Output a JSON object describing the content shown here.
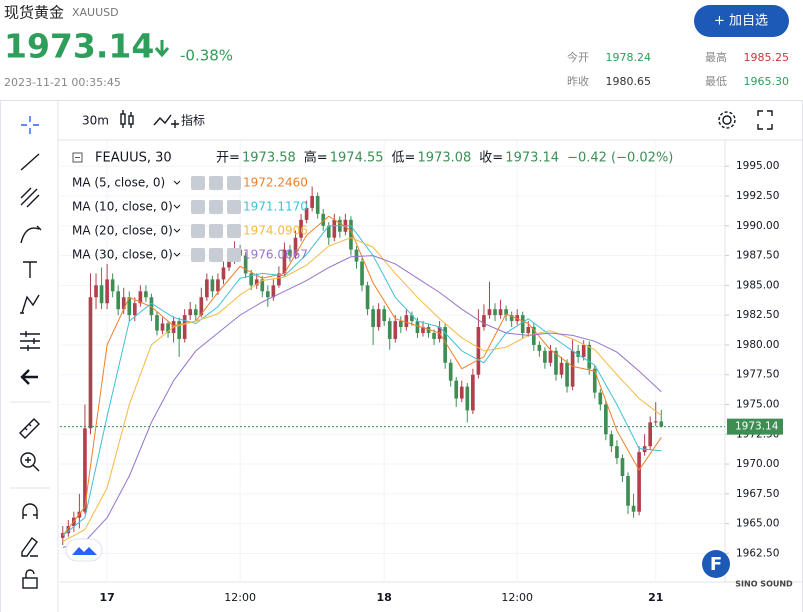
{
  "header": {
    "title": "现货黄金",
    "ticker": "XAUUSD",
    "price": "1973.14",
    "change": "-0.38%",
    "time": "2023-11-21 00:35:45",
    "button": "+ 加自选",
    "stats": [
      {
        "label": "今开",
        "value": "1978.24",
        "color": "#2e9e5b"
      },
      {
        "label": "最高",
        "value": "1985.25",
        "color": "#d0343a"
      },
      {
        "label": "昨收",
        "value": "1980.65",
        "color": "#333333"
      },
      {
        "label": "最低",
        "value": "1965.30",
        "color": "#2e9e5b"
      }
    ]
  },
  "toolbar": {
    "interval": "30m",
    "indicators": "指标"
  },
  "watermark": "SINO SOUND",
  "logo": "F",
  "chart_data": {
    "type": "candlestick",
    "symbol": "FEAUUS, 30",
    "ohlc_labels": [
      "开=",
      "高=",
      "低=",
      "收="
    ],
    "change_text": "−0.42 (−0.02%)",
    "up_color": "#b0404c",
    "down_color": "#3e8e54",
    "grid": true,
    "xlim": [
      -0.5,
      119.5
    ],
    "ylim": [
      1960.1,
      1997.2
    ],
    "xticks": [
      {
        "value": 8,
        "label": "17"
      },
      {
        "value": 32,
        "label": "12:00"
      },
      {
        "value": 58,
        "label": "18"
      },
      {
        "value": 82,
        "label": "12:00"
      },
      {
        "value": 107,
        "label": "21"
      }
    ],
    "yticks": [
      {
        "value": 1962.5,
        "label": "1962.50"
      },
      {
        "value": 1965,
        "label": "1965.00"
      },
      {
        "value": 1967.5,
        "label": "1967.50"
      },
      {
        "value": 1970,
        "label": "1970.00"
      },
      {
        "value": 1972.5,
        "label": "1972.50"
      },
      {
        "value": 1975,
        "label": "1975.00"
      },
      {
        "value": 1977.5,
        "label": "1977.50"
      },
      {
        "value": 1980,
        "label": "1980.00"
      },
      {
        "value": 1982.5,
        "label": "1982.50"
      },
      {
        "value": 1985,
        "label": "1985.00"
      },
      {
        "value": 1987.5,
        "label": "1987.50"
      },
      {
        "value": 1990,
        "label": "1990.00"
      },
      {
        "value": 1992.5,
        "label": "1992.50"
      },
      {
        "value": 1995,
        "label": "1995.00"
      }
    ],
    "candles": [
      [
        1963.8,
        1964.8,
        1963.2,
        1964.2
      ],
      [
        1964.2,
        1965.3,
        1963.9,
        1964.8
      ],
      [
        1964.8,
        1966,
        1964.3,
        1965.5
      ],
      [
        1965.5,
        1967.5,
        1964.6,
        1966
      ],
      [
        1966,
        1975,
        1965.8,
        1973
      ],
      [
        1973,
        1986,
        1972.5,
        1984
      ],
      [
        1984,
        1986,
        1983,
        1985
      ],
      [
        1985,
        1986.5,
        1983,
        1983.5
      ],
      [
        1983.5,
        1986.8,
        1983,
        1985.5
      ],
      [
        1985.5,
        1986,
        1984,
        1984.5
      ],
      [
        1984.5,
        1985,
        1982.5,
        1983
      ],
      [
        1983,
        1984.8,
        1982.6,
        1984
      ],
      [
        1984,
        1984.5,
        1982,
        1982.5
      ],
      [
        1982.5,
        1984,
        1982,
        1983.5
      ],
      [
        1983.5,
        1985,
        1983.2,
        1984.5
      ],
      [
        1984.5,
        1985,
        1983.6,
        1984
      ],
      [
        1984,
        1984.3,
        1982,
        1982.5
      ],
      [
        1982.5,
        1982.8,
        1980.8,
        1981.2
      ],
      [
        1981.2,
        1982.3,
        1980.9,
        1981.8
      ],
      [
        1981.8,
        1982,
        1980.6,
        1981
      ],
      [
        1981,
        1982.4,
        1980.2,
        1982
      ],
      [
        1982,
        1982.3,
        1979,
        1980.5
      ],
      [
        1980.5,
        1983,
        1980.2,
        1982.5
      ],
      [
        1982.5,
        1983.6,
        1982.1,
        1983
      ],
      [
        1983,
        1983.4,
        1982,
        1982.5
      ],
      [
        1982.5,
        1984.8,
        1982.3,
        1984
      ],
      [
        1984,
        1986,
        1983.7,
        1985.5
      ],
      [
        1985.5,
        1985.8,
        1984,
        1984.5
      ],
      [
        1984.5,
        1986,
        1984.2,
        1985.5
      ],
      [
        1985.5,
        1987,
        1985.1,
        1986.5
      ],
      [
        1986.5,
        1987.6,
        1986.2,
        1987
      ],
      [
        1987,
        1988.7,
        1986.8,
        1988
      ],
      [
        1988,
        1988.4,
        1987,
        1987.5
      ],
      [
        1987.5,
        1987.8,
        1985.6,
        1986
      ],
      [
        1986,
        1986.3,
        1984.6,
        1985
      ],
      [
        1985,
        1986,
        1984.7,
        1985.5
      ],
      [
        1985.5,
        1985.8,
        1984,
        1984.5
      ],
      [
        1984.5,
        1985,
        1983.2,
        1984
      ],
      [
        1984,
        1985.5,
        1983.7,
        1985
      ],
      [
        1985,
        1986.6,
        1984.8,
        1986
      ],
      [
        1986,
        1988.6,
        1985.8,
        1988
      ],
      [
        1988,
        1988.4,
        1987,
        1987.5
      ],
      [
        1987.5,
        1989.6,
        1987.2,
        1989
      ],
      [
        1989,
        1991,
        1988.7,
        1990.5
      ],
      [
        1990.5,
        1992.1,
        1990.2,
        1991.5
      ],
      [
        1991.5,
        1993.3,
        1991.2,
        1992.5
      ],
      [
        1992.5,
        1992.8,
        1990.6,
        1991
      ],
      [
        1991,
        1991.4,
        1989.6,
        1990
      ],
      [
        1990,
        1990.3,
        1988.4,
        1989
      ],
      [
        1989,
        1991,
        1988.7,
        1990.5
      ],
      [
        1990.5,
        1990.8,
        1989,
        1989.5
      ],
      [
        1989.5,
        1991,
        1989.2,
        1990.5
      ],
      [
        1990.5,
        1990.8,
        1987.5,
        1988
      ],
      [
        1988,
        1988.3,
        1986.4,
        1987
      ],
      [
        1987,
        1987.3,
        1984.5,
        1985
      ],
      [
        1985,
        1985.3,
        1982.5,
        1983
      ],
      [
        1983,
        1983.3,
        1980,
        1981.5
      ],
      [
        1981.5,
        1983.5,
        1981.2,
        1983
      ],
      [
        1983,
        1983.3,
        1981.6,
        1982
      ],
      [
        1982,
        1982.3,
        1979.6,
        1980.5
      ],
      [
        1980.5,
        1982.5,
        1980.2,
        1982
      ],
      [
        1982,
        1982.4,
        1981,
        1981.5
      ],
      [
        1981.5,
        1983,
        1981.2,
        1982.5
      ],
      [
        1982.5,
        1982.8,
        1981.6,
        1982
      ],
      [
        1982,
        1982.3,
        1980.6,
        1981
      ],
      [
        1981,
        1982,
        1980.7,
        1981.5
      ],
      [
        1981.5,
        1981.8,
        1980.6,
        1981
      ],
      [
        1981,
        1981.3,
        1980,
        1980.5
      ],
      [
        1980.5,
        1982,
        1980.2,
        1981.5
      ],
      [
        1981.5,
        1981.8,
        1978,
        1978.5
      ],
      [
        1978.5,
        1978.8,
        1976.5,
        1977
      ],
      [
        1977,
        1977.3,
        1974.8,
        1975.5
      ],
      [
        1975.5,
        1977,
        1975.2,
        1976.5
      ],
      [
        1976.5,
        1976.8,
        1973.5,
        1974.5
      ],
      [
        1974.5,
        1978,
        1974.2,
        1977.5
      ],
      [
        1977.5,
        1983,
        1977.2,
        1981.5
      ],
      [
        1981.5,
        1983.4,
        1981.2,
        1982.5
      ],
      [
        1982.5,
        1985.3,
        1982.2,
        1983
      ],
      [
        1983,
        1983.5,
        1982,
        1982.5
      ],
      [
        1982.5,
        1983.8,
        1982.2,
        1983
      ],
      [
        1983,
        1983.3,
        1982,
        1982.5
      ],
      [
        1982.5,
        1982.8,
        1981.5,
        1982
      ],
      [
        1982,
        1983,
        1981.7,
        1982.5
      ],
      [
        1982.5,
        1982.8,
        1980.5,
        1981
      ],
      [
        1981,
        1982,
        1980.7,
        1981.5
      ],
      [
        1981.5,
        1981.8,
        1979.5,
        1980
      ],
      [
        1980,
        1980.3,
        1979,
        1979.5
      ],
      [
        1979.5,
        1979.8,
        1978,
        1978.5
      ],
      [
        1978.5,
        1980,
        1978.2,
        1979.5
      ],
      [
        1979.5,
        1979.8,
        1977,
        1977.5
      ],
      [
        1977.5,
        1979,
        1977.2,
        1978.5
      ],
      [
        1978.5,
        1978.8,
        1976,
        1976.5
      ],
      [
        1976.5,
        1980.5,
        1976.2,
        1979.5
      ],
      [
        1979.5,
        1980,
        1978.5,
        1979
      ],
      [
        1979,
        1980.4,
        1978.7,
        1980
      ],
      [
        1980,
        1980.3,
        1977.5,
        1978
      ],
      [
        1978,
        1978.3,
        1975.5,
        1976
      ],
      [
        1976,
        1976.3,
        1974.5,
        1975
      ],
      [
        1975,
        1975.3,
        1972,
        1972.5
      ],
      [
        1972.5,
        1972.8,
        1971,
        1971.5
      ],
      [
        1971.5,
        1972,
        1970,
        1970.5
      ],
      [
        1970.5,
        1970.8,
        1968.5,
        1969
      ],
      [
        1969,
        1969.3,
        1965.8,
        1966.5
      ],
      [
        1966.5,
        1967.5,
        1965.5,
        1966
      ],
      [
        1966,
        1971.5,
        1965.7,
        1971
      ],
      [
        1971,
        1972.5,
        1970.7,
        1971.5
      ],
      [
        1971.5,
        1974,
        1971.2,
        1973.5
      ],
      [
        1973.5,
        1975.2,
        1973.2,
        1973.58
      ],
      [
        1973.58,
        1974.55,
        1973.08,
        1973.14
      ]
    ],
    "x": [
      0,
      4,
      8,
      12,
      16,
      20,
      24,
      28,
      32,
      36,
      40,
      44,
      48,
      52,
      56,
      60,
      64,
      68,
      72,
      76,
      80,
      84,
      88,
      92,
      96,
      100,
      104,
      108
    ],
    "series": [
      {
        "name": "MA (5, close, 0)",
        "color": "#f07f2a",
        "value_label": "1972.2460",
        "values": [
          1964,
          1966.4,
          1980,
          1984,
          1983.2,
          1981.6,
          1982,
          1984.4,
          1986.6,
          1985.6,
          1986,
          1989.2,
          1990.8,
          1989.6,
          1985.2,
          1982.2,
          1981.6,
          1981,
          1978,
          1979,
          1982.6,
          1981.8,
          1979.6,
          1978.2,
          1977.8,
          1972.8,
          1969.5,
          1972.246
        ]
      },
      {
        "name": "MA (10, close, 0)",
        "color": "#3fc1d6",
        "value_label": "1971.1170",
        "values": [
          1964,
          1965.5,
          1974,
          1982,
          1983.5,
          1982.3,
          1981.8,
          1983.2,
          1985.6,
          1986,
          1985.8,
          1987.6,
          1990,
          1990,
          1987.5,
          1984,
          1982,
          1981.5,
          1979.5,
          1978.5,
          1981,
          1982.2,
          1980.8,
          1979.5,
          1978.3,
          1975,
          1971.3,
          1971.117
        ]
      },
      {
        "name": "MA (20, close, 0)",
        "color": "#f5b944",
        "value_label": "1974.0906",
        "values": [
          1963.5,
          1964.5,
          1968,
          1975,
          1980,
          1981.5,
          1982,
          1982.6,
          1984.2,
          1985.4,
          1985.7,
          1986.7,
          1988.3,
          1989,
          1988.2,
          1986,
          1984,
          1982.2,
          1980.6,
          1979.5,
          1979.8,
          1980.8,
          1981.2,
          1980.5,
          1979.6,
          1977.5,
          1975.5,
          1974.0906
        ]
      },
      {
        "name": "MA (30, close, 0)",
        "color": "#9575cd",
        "value_label": "1976.0667",
        "values": [
          1963,
          1963.5,
          1965.5,
          1969,
          1973.5,
          1977,
          1979.5,
          1981,
          1982.5,
          1983.6,
          1984.5,
          1985.4,
          1986.5,
          1987.4,
          1987.5,
          1986.8,
          1985.6,
          1984.4,
          1983,
          1981.8,
          1981,
          1980.8,
          1981,
          1980.8,
          1980.3,
          1979.4,
          1977.8,
          1976.0667
        ]
      }
    ]
  }
}
